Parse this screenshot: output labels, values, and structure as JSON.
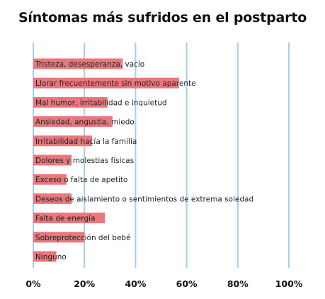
{
  "chart_data": {
    "type": "bar",
    "orientation": "horizontal",
    "title": "Síntomas más sufridos en el postparto",
    "categories": [
      "Tristeza, desesperanza, vacío",
      "Llorar frecuentemente sin motivo aparente",
      "Mal humor, irritabilidad e inquietud",
      "Ansiedad, angustia, miedo",
      "Irritabilidad hacía la familia",
      "Dolores y molestias físicas",
      "Exceso o falta de apetito",
      "Deseos de aislamiento o sentimientos de extrema soledad",
      "Falta de energía",
      "Sobreprotección del bebé",
      "Ninguno"
    ],
    "values": [
      35,
      57,
      29,
      31,
      23,
      15,
      13,
      15,
      28,
      20,
      9
    ],
    "xlim": [
      0,
      100
    ],
    "x_ticks": [
      "0%",
      "20%",
      "40%",
      "60%",
      "80%",
      "100%"
    ],
    "grid": true,
    "colors": {
      "bar": "#e8787c",
      "grid": "#a7cfe6"
    }
  }
}
